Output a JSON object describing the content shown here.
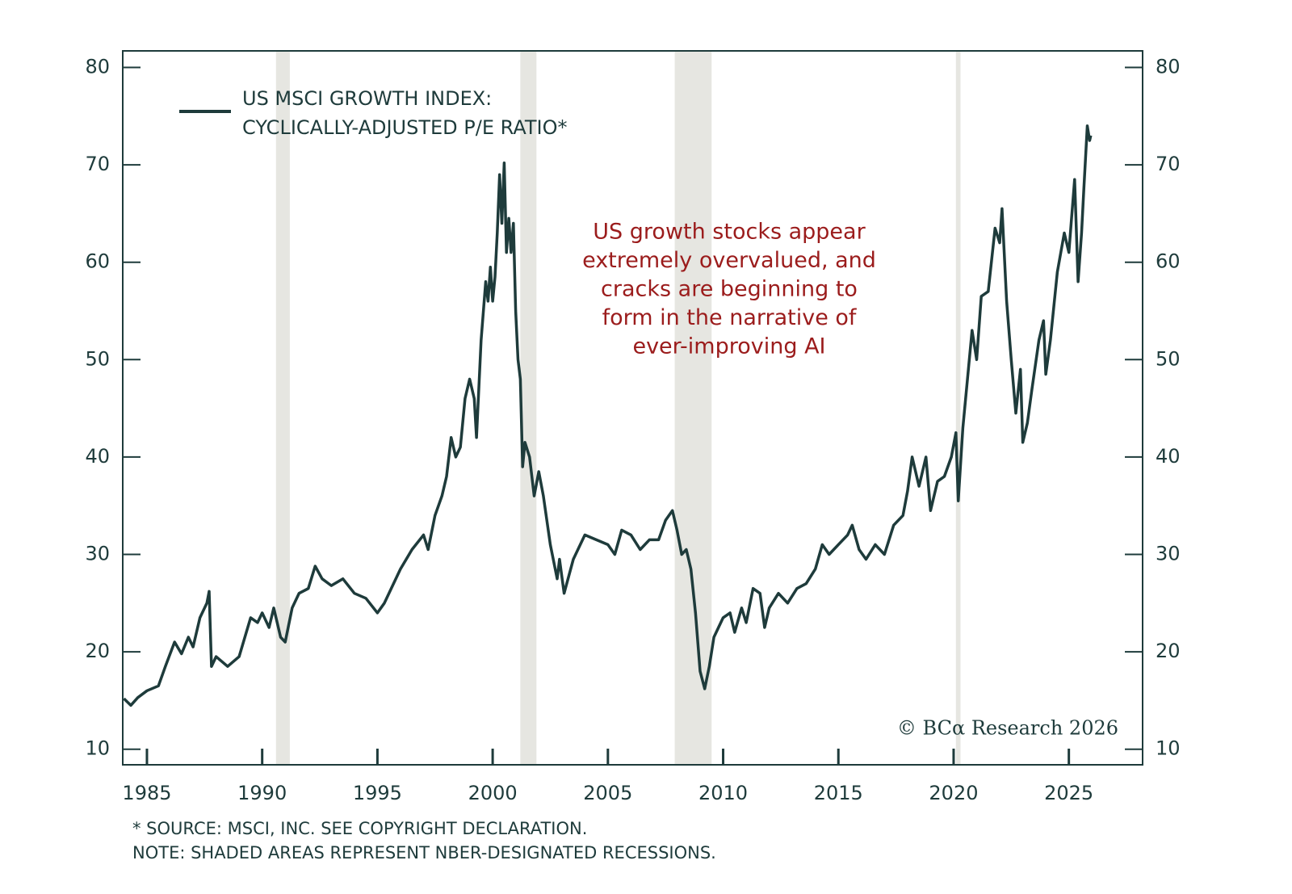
{
  "chart_data": {
    "type": "line",
    "legend_lines": [
      "US MSCI GROWTH INDEX:",
      "CYCLICALLY-ADJUSTED P/E RATIO*"
    ],
    "annotation": [
      "US growth stocks appear",
      "extremely overvalued, and",
      "cracks are beginning to",
      "form in the narrative of",
      "ever-improving AI"
    ],
    "annotation_color": "#9b1c1c",
    "credit": "© BCα Research 2026",
    "footnotes": [
      "* SOURCE: MSCI, INC. SEE COPYRIGHT DECLARATION.",
      "NOTE: SHADED AREAS REPRESENT NBER-DESIGNATED RECESSIONS."
    ],
    "recessions": [
      [
        1990.6,
        1991.2
      ],
      [
        2001.2,
        2001.9
      ],
      [
        2007.9,
        2009.5
      ],
      [
        2020.1,
        2020.3
      ]
    ],
    "recession_color": "#e6e6e1",
    "xlim": [
      1983.95,
      2028.2
    ],
    "xticks": [
      1985,
      1990,
      1995,
      2000,
      2005,
      2010,
      2015,
      2020,
      2025
    ],
    "ylim": [
      8.4,
      81.7
    ],
    "yticks": [
      10,
      20,
      30,
      40,
      50,
      60,
      70,
      80
    ],
    "grid": false,
    "x": [
      1984.0,
      1984.3,
      1984.6,
      1985.0,
      1985.5,
      1985.8,
      1986.2,
      1986.5,
      1986.8,
      1987.0,
      1987.3,
      1987.6,
      1987.7,
      1987.8,
      1988.0,
      1988.5,
      1989.0,
      1989.5,
      1989.8,
      1990.0,
      1990.3,
      1990.5,
      1990.8,
      1991.0,
      1991.3,
      1991.6,
      1992.0,
      1992.3,
      1992.6,
      1993.0,
      1993.5,
      1994.0,
      1994.5,
      1995.0,
      1995.3,
      1995.6,
      1996.0,
      1996.5,
      1997.0,
      1997.2,
      1997.5,
      1997.8,
      1998.0,
      1998.2,
      1998.4,
      1998.6,
      1998.8,
      1999.0,
      1999.2,
      1999.3,
      1999.5,
      1999.7,
      1999.8,
      1999.9,
      2000.0,
      2000.1,
      2000.2,
      2000.3,
      2000.4,
      2000.5,
      2000.6,
      2000.7,
      2000.8,
      2000.9,
      2001.0,
      2001.1,
      2001.2,
      2001.3,
      2001.4,
      2001.6,
      2001.8,
      2002.0,
      2002.2,
      2002.5,
      2002.8,
      2002.9,
      2003.1,
      2003.5,
      2004.0,
      2004.5,
      2005.0,
      2005.3,
      2005.6,
      2006.0,
      2006.4,
      2006.8,
      2007.2,
      2007.5,
      2007.8,
      2008.0,
      2008.2,
      2008.4,
      2008.6,
      2008.8,
      2009.0,
      2009.2,
      2009.4,
      2009.6,
      2010.0,
      2010.3,
      2010.5,
      2010.8,
      2011.0,
      2011.3,
      2011.6,
      2011.8,
      2012.0,
      2012.4,
      2012.8,
      2013.2,
      2013.6,
      2014.0,
      2014.3,
      2014.6,
      2015.0,
      2015.4,
      2015.6,
      2015.9,
      2016.2,
      2016.6,
      2017.0,
      2017.4,
      2017.8,
      2018.0,
      2018.2,
      2018.5,
      2018.8,
      2019.0,
      2019.3,
      2019.6,
      2019.9,
      2020.1,
      2020.2,
      2020.4,
      2020.6,
      2020.8,
      2021.0,
      2021.2,
      2021.5,
      2021.8,
      2022.0,
      2022.1,
      2022.3,
      2022.5,
      2022.7,
      2022.9,
      2023.0,
      2023.2,
      2023.4,
      2023.7,
      2023.9,
      2024.0,
      2024.2,
      2024.5,
      2024.8,
      2025.0,
      2025.1,
      2025.25,
      2025.4,
      2025.55,
      2025.65,
      2025.8,
      2025.9,
      2025.95
    ],
    "series": [
      {
        "color": "#1e3b3b",
        "values": [
          15.2,
          14.5,
          15.3,
          16.0,
          16.5,
          18.5,
          21.0,
          19.8,
          21.5,
          20.5,
          23.5,
          25.0,
          26.2,
          18.5,
          19.5,
          18.5,
          19.5,
          23.5,
          23.0,
          24.0,
          22.5,
          24.5,
          21.5,
          21.0,
          24.5,
          26.0,
          26.5,
          28.8,
          27.5,
          26.8,
          27.5,
          26.0,
          25.5,
          24.0,
          25.0,
          26.5,
          28.5,
          30.5,
          32.0,
          30.5,
          34.0,
          36.0,
          38.0,
          42.0,
          40.0,
          41.0,
          46.0,
          48.0,
          46.0,
          42.0,
          52.0,
          58.0,
          56.0,
          59.5,
          56.0,
          58.5,
          63.0,
          69.0,
          64.0,
          70.2,
          61.0,
          64.5,
          61.0,
          64.0,
          55.0,
          50.0,
          48.0,
          39.0,
          41.5,
          40.0,
          36.0,
          38.5,
          36.0,
          31.0,
          27.5,
          29.5,
          26.0,
          29.5,
          32.0,
          31.5,
          31.0,
          30.0,
          32.5,
          32.0,
          30.5,
          31.5,
          31.5,
          33.5,
          34.5,
          32.5,
          30.0,
          30.5,
          28.5,
          24.0,
          18.0,
          16.2,
          18.5,
          21.5,
          23.5,
          24.0,
          22.0,
          24.5,
          23.0,
          26.5,
          26.0,
          22.5,
          24.5,
          26.0,
          25.0,
          26.5,
          27.0,
          28.5,
          31.0,
          30.0,
          31.0,
          32.0,
          33.0,
          30.5,
          29.5,
          31.0,
          30.0,
          33.0,
          34.0,
          36.5,
          40.0,
          37.0,
          40.0,
          34.5,
          37.5,
          38.0,
          40.0,
          42.5,
          35.5,
          43.0,
          48.0,
          53.0,
          50.0,
          56.5,
          57.0,
          63.5,
          62.0,
          65.5,
          56.0,
          50.0,
          44.5,
          49.0,
          41.5,
          43.5,
          47.0,
          52.0,
          54.0,
          48.5,
          52.0,
          59.0,
          63.0,
          61.0,
          64.0,
          68.5,
          58.0,
          63.0,
          67.5,
          74.0,
          72.5,
          73.0
        ]
      }
    ]
  }
}
